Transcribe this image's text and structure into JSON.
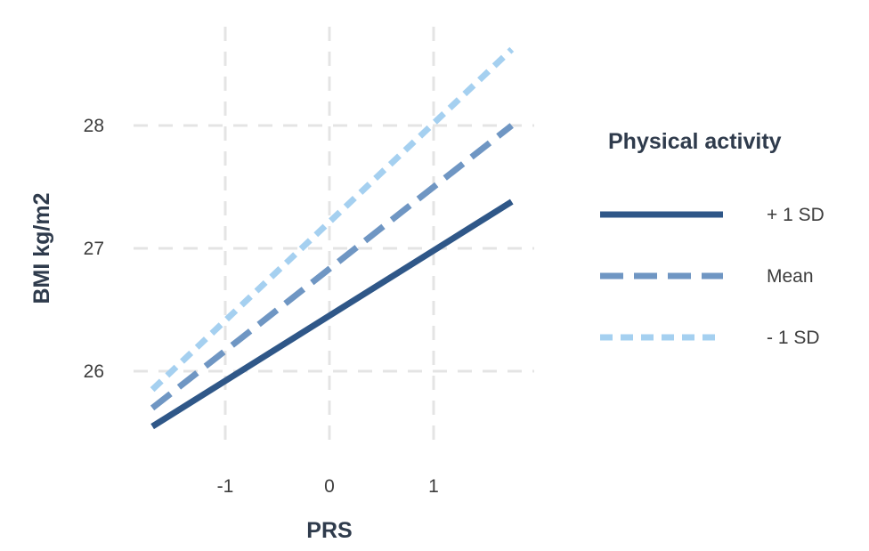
{
  "chart_data": {
    "type": "line",
    "xlabel": "PRS",
    "ylabel": "BMI kg/m2",
    "x_ticks": [
      "-1",
      "0",
      "1"
    ],
    "y_ticks": [
      "26",
      "27",
      "28"
    ],
    "xlim": [
      -1.8,
      1.9
    ],
    "ylim": [
      25.3,
      28.9
    ],
    "grid": true,
    "legend": {
      "title": "Physical activity",
      "placement": "right"
    },
    "series": [
      {
        "name": "+ 1 SD",
        "x": [
          -1.7,
          1.75
        ],
        "values": [
          25.55,
          27.38
        ],
        "color": "#2f5788",
        "style": "solid"
      },
      {
        "name": "Mean",
        "x": [
          -1.7,
          1.75
        ],
        "values": [
          25.7,
          28.0
        ],
        "color": "#6f96c3",
        "style": "dashed"
      },
      {
        "name": "- 1 SD",
        "x": [
          -1.7,
          1.75
        ],
        "values": [
          25.85,
          28.62
        ],
        "color": "#a5d0f0",
        "style": "dotted"
      }
    ]
  }
}
